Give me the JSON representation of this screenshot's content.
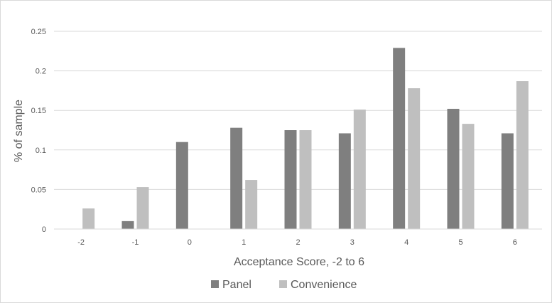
{
  "chart_data": {
    "type": "bar",
    "categories": [
      "-2",
      "-1",
      "0",
      "1",
      "2",
      "3",
      "4",
      "5",
      "6"
    ],
    "series": [
      {
        "name": "Panel",
        "color": "#7f7f7f",
        "values": [
          0,
          0.01,
          0.11,
          0.128,
          0.125,
          0.121,
          0.229,
          0.152,
          0.121
        ]
      },
      {
        "name": "Convenience",
        "color": "#bfbfbf",
        "values": [
          0.026,
          0.053,
          0,
          0.062,
          0.125,
          0.151,
          0.178,
          0.133,
          0.187
        ]
      }
    ],
    "title": "",
    "xlabel": "Acceptance Score, -2 to 6",
    "ylabel": "% of sample",
    "ylim": [
      0,
      0.25
    ],
    "yticks": [
      "0",
      "0.05",
      "0.1",
      "0.15",
      "0.2",
      "0.25"
    ],
    "grid": true,
    "legend": "bottom-center"
  }
}
